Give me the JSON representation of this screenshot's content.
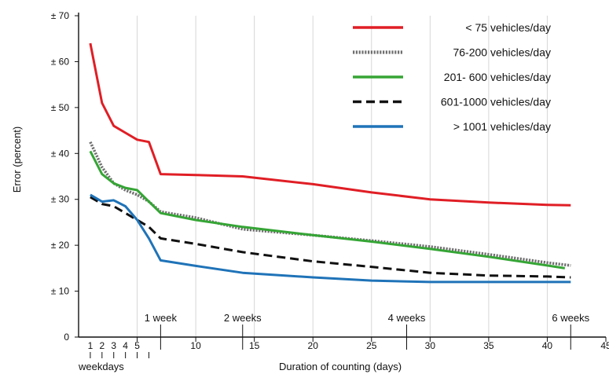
{
  "chart_data": {
    "type": "line",
    "xlabel": "Duration of counting (days)",
    "ylabel": "Error (percent)",
    "xlim": [
      0,
      45
    ],
    "ylim": [
      0,
      70
    ],
    "x_ticks": [
      {
        "value": 1,
        "label": "1"
      },
      {
        "value": 2,
        "label": "2"
      },
      {
        "value": 3,
        "label": "3"
      },
      {
        "value": 4,
        "label": "4"
      },
      {
        "value": 5,
        "label": "5"
      },
      {
        "value": 10,
        "label": "10"
      },
      {
        "value": 15,
        "label": "15"
      },
      {
        "value": 20,
        "label": "20"
      },
      {
        "value": 25,
        "label": "25"
      },
      {
        "value": 30,
        "label": "30"
      },
      {
        "value": 35,
        "label": "35"
      },
      {
        "value": 40,
        "label": "40"
      },
      {
        "value": 45,
        "label": "45"
      }
    ],
    "y_ticks": [
      {
        "value": 0,
        "label": "0"
      },
      {
        "value": 10,
        "label": "± 10"
      },
      {
        "value": 20,
        "label": "± 20"
      },
      {
        "value": 30,
        "label": "± 30"
      },
      {
        "value": 40,
        "label": "± 40"
      },
      {
        "value": 50,
        "label": "± 50"
      },
      {
        "value": 60,
        "label": "± 60"
      },
      {
        "value": 70,
        "label": "± 70"
      }
    ],
    "weekday_ticks": [
      1,
      2,
      3,
      4,
      5,
      6
    ],
    "weekday_label": "weekdays",
    "week_markers": [
      {
        "value": 7,
        "label": "1 week"
      },
      {
        "value": 14,
        "label": "2 weeks"
      },
      {
        "value": 28,
        "label": "4 weeks"
      },
      {
        "value": 42,
        "label": "6 weeks"
      }
    ],
    "grid": {
      "vertical": true,
      "horizontal": false
    },
    "legend_position": "top-right",
    "series": [
      {
        "name": "< 75 vehicles/day",
        "color": "#e01e25",
        "style": "solid",
        "x": [
          1,
          2,
          3,
          4,
          5,
          6,
          7,
          10,
          14,
          20,
          25,
          30,
          35,
          40,
          42
        ],
        "values": [
          64,
          51,
          46,
          44.5,
          43,
          42.5,
          35.5,
          35.3,
          35,
          33.3,
          31.5,
          30,
          29.3,
          28.8,
          28.7
        ]
      },
      {
        "name": "76-200 vehicles/day",
        "color": "#6f6f6f",
        "style": "dotted",
        "x": [
          1,
          2,
          3,
          4,
          5,
          6,
          7,
          10,
          14,
          20,
          25,
          30,
          35,
          40,
          42
        ],
        "values": [
          42.5,
          37,
          33.5,
          32,
          31,
          29.5,
          27.3,
          26,
          23.5,
          22.2,
          21,
          19.7,
          18,
          16.2,
          15.6
        ]
      },
      {
        "name": "201- 600 vehicles/day",
        "color": "#35a535",
        "style": "solid",
        "x": [
          1,
          2,
          3,
          4,
          5,
          6,
          7,
          10,
          14,
          20,
          25,
          30,
          35,
          40,
          41.5
        ],
        "values": [
          40.5,
          35.5,
          33.5,
          32.5,
          32,
          29.5,
          27,
          25.5,
          24,
          22.2,
          20.8,
          19.2,
          17.5,
          15.6,
          15
        ]
      },
      {
        "name": "601-1000 vehicles/day",
        "color": "#111111",
        "style": "dashed",
        "x": [
          1,
          2,
          3,
          4,
          5,
          6,
          7,
          10,
          14,
          20,
          25,
          30,
          35,
          40,
          42
        ],
        "values": [
          30.5,
          29,
          28.5,
          27,
          25.5,
          24,
          21.5,
          20.3,
          18.5,
          16.5,
          15.3,
          14,
          13.4,
          13.2,
          13
        ]
      },
      {
        "name": "> 1001 vehicles/day",
        "color": "#1f73b8",
        "style": "solid",
        "x": [
          1,
          2,
          3,
          4,
          5,
          6,
          7,
          10,
          14,
          20,
          25,
          30,
          35,
          40,
          42
        ],
        "values": [
          31,
          29.5,
          29.8,
          28.5,
          25.5,
          21.5,
          16.7,
          15.5,
          14,
          13,
          12.3,
          12,
          12,
          12,
          12
        ]
      }
    ]
  }
}
